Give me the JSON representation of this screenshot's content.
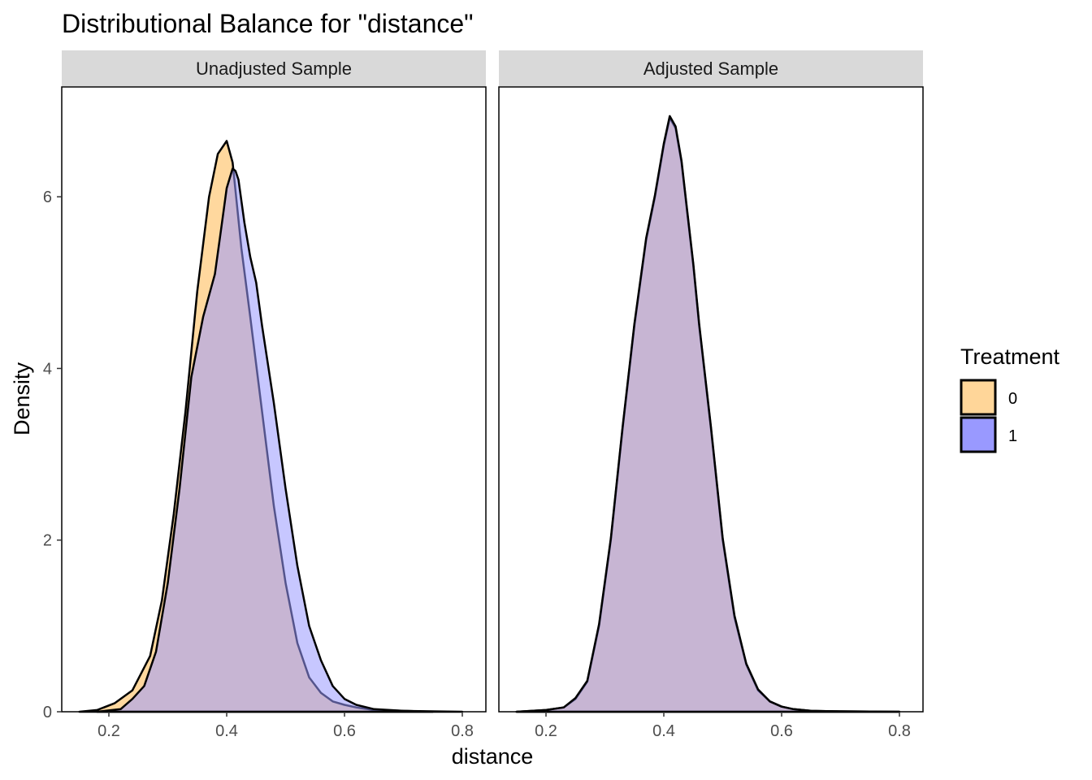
{
  "chart_data": {
    "type": "area",
    "title": "Distributional Balance for \"distance\"",
    "xlabel": "distance",
    "ylabel": "Density",
    "xlim": [
      0.12,
      0.84
    ],
    "ylim": [
      0,
      7.28
    ],
    "x_ticks": [
      "0.2",
      "0.4",
      "0.6",
      "0.8"
    ],
    "x_tick_values": [
      0.2,
      0.4,
      0.6,
      0.8
    ],
    "y_ticks": [
      "0",
      "2",
      "4",
      "6"
    ],
    "y_tick_values": [
      0,
      2,
      4,
      6
    ],
    "grid": false,
    "legend": {
      "title": "Treatment",
      "position": "right",
      "entries": [
        {
          "label": "0",
          "color": "#FFD699"
        },
        {
          "label": "1",
          "color": "#9999FF"
        }
      ]
    },
    "panels": [
      {
        "label": "Unadjusted Sample",
        "series": [
          {
            "name": "0",
            "color": "#FFD699",
            "x": [
              0.15,
              0.18,
              0.21,
              0.24,
              0.27,
              0.29,
              0.31,
              0.33,
              0.35,
              0.37,
              0.385,
              0.4,
              0.41,
              0.425,
              0.44,
              0.46,
              0.48,
              0.5,
              0.52,
              0.54,
              0.56,
              0.58,
              0.6,
              0.62,
              0.65,
              0.7,
              0.75,
              0.8
            ],
            "values": [
              0.0,
              0.02,
              0.1,
              0.25,
              0.65,
              1.3,
              2.3,
              3.5,
              4.9,
              6.0,
              6.5,
              6.65,
              6.4,
              5.4,
              4.6,
              3.5,
              2.4,
              1.5,
              0.8,
              0.4,
              0.22,
              0.12,
              0.08,
              0.05,
              0.02,
              0.01,
              0.005,
              0.0
            ]
          },
          {
            "name": "1",
            "color": "#9999FF",
            "x": [
              0.18,
              0.22,
              0.24,
              0.26,
              0.28,
              0.3,
              0.32,
              0.34,
              0.36,
              0.38,
              0.39,
              0.4,
              0.41,
              0.415,
              0.42,
              0.43,
              0.44,
              0.45,
              0.46,
              0.48,
              0.5,
              0.52,
              0.54,
              0.56,
              0.58,
              0.6,
              0.62,
              0.65,
              0.7,
              0.75
            ],
            "values": [
              0.0,
              0.03,
              0.15,
              0.3,
              0.7,
              1.5,
              2.6,
              3.9,
              4.6,
              5.1,
              5.6,
              6.1,
              6.33,
              6.3,
              6.2,
              5.7,
              5.3,
              5.0,
              4.5,
              3.6,
              2.6,
              1.7,
              1.0,
              0.6,
              0.3,
              0.15,
              0.08,
              0.03,
              0.01,
              0.0
            ]
          }
        ]
      },
      {
        "label": "Adjusted Sample",
        "series": [
          {
            "name": "0",
            "color": "#FFD699",
            "x": [
              0.15,
              0.2,
              0.23,
              0.25,
              0.27,
              0.29,
              0.31,
              0.33,
              0.35,
              0.37,
              0.385,
              0.4,
              0.41,
              0.42,
              0.43,
              0.44,
              0.45,
              0.46,
              0.48,
              0.5,
              0.52,
              0.54,
              0.56,
              0.58,
              0.6,
              0.62,
              0.65,
              0.7,
              0.8
            ],
            "values": [
              0.0,
              0.02,
              0.05,
              0.15,
              0.35,
              1.0,
              2.0,
              3.3,
              4.5,
              5.5,
              6.0,
              6.6,
              6.92,
              6.8,
              6.4,
              5.8,
              5.2,
              4.5,
              3.3,
              2.0,
              1.1,
              0.55,
              0.25,
              0.12,
              0.06,
              0.03,
              0.01,
              0.005,
              0.0
            ]
          },
          {
            "name": "1",
            "color": "#9999FF",
            "x": [
              0.15,
              0.2,
              0.23,
              0.25,
              0.27,
              0.29,
              0.31,
              0.33,
              0.35,
              0.37,
              0.385,
              0.4,
              0.41,
              0.42,
              0.43,
              0.44,
              0.45,
              0.46,
              0.48,
              0.5,
              0.52,
              0.54,
              0.56,
              0.58,
              0.6,
              0.62,
              0.65,
              0.7,
              0.8
            ],
            "values": [
              0.0,
              0.02,
              0.05,
              0.16,
              0.36,
              1.02,
              2.02,
              3.32,
              4.52,
              5.52,
              6.02,
              6.62,
              6.94,
              6.82,
              6.42,
              5.82,
              5.22,
              4.52,
              3.32,
              2.02,
              1.12,
              0.56,
              0.26,
              0.12,
              0.06,
              0.03,
              0.01,
              0.005,
              0.0
            ]
          }
        ]
      }
    ]
  }
}
